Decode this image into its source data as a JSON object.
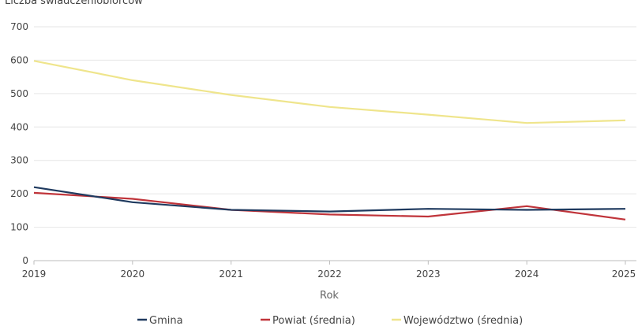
{
  "chart_data": {
    "type": "line",
    "title": "Liczba świadczeniobiorców",
    "xlabel": "Rok",
    "ylabel": "",
    "x": [
      "2019",
      "2020",
      "2021",
      "2022",
      "2023",
      "2024",
      "2025"
    ],
    "ylim": [
      0,
      700
    ],
    "yticks": [
      "0",
      "100",
      "200",
      "300",
      "400",
      "500",
      "600",
      "700"
    ],
    "grid": "horizontal",
    "legend": "bottom",
    "series": [
      {
        "name": "Gmina",
        "color": "#1f3a5f",
        "values": [
          220,
          175,
          152,
          147,
          155,
          152,
          155
        ]
      },
      {
        "name": "Powiat (średnia)",
        "color": "#c0343a",
        "values": [
          203,
          185,
          152,
          138,
          132,
          163,
          123
        ]
      },
      {
        "name": "Województwo (średnia)",
        "color": "#efe58c",
        "values": [
          598,
          540,
          496,
          460,
          437,
          412,
          420
        ]
      }
    ]
  }
}
